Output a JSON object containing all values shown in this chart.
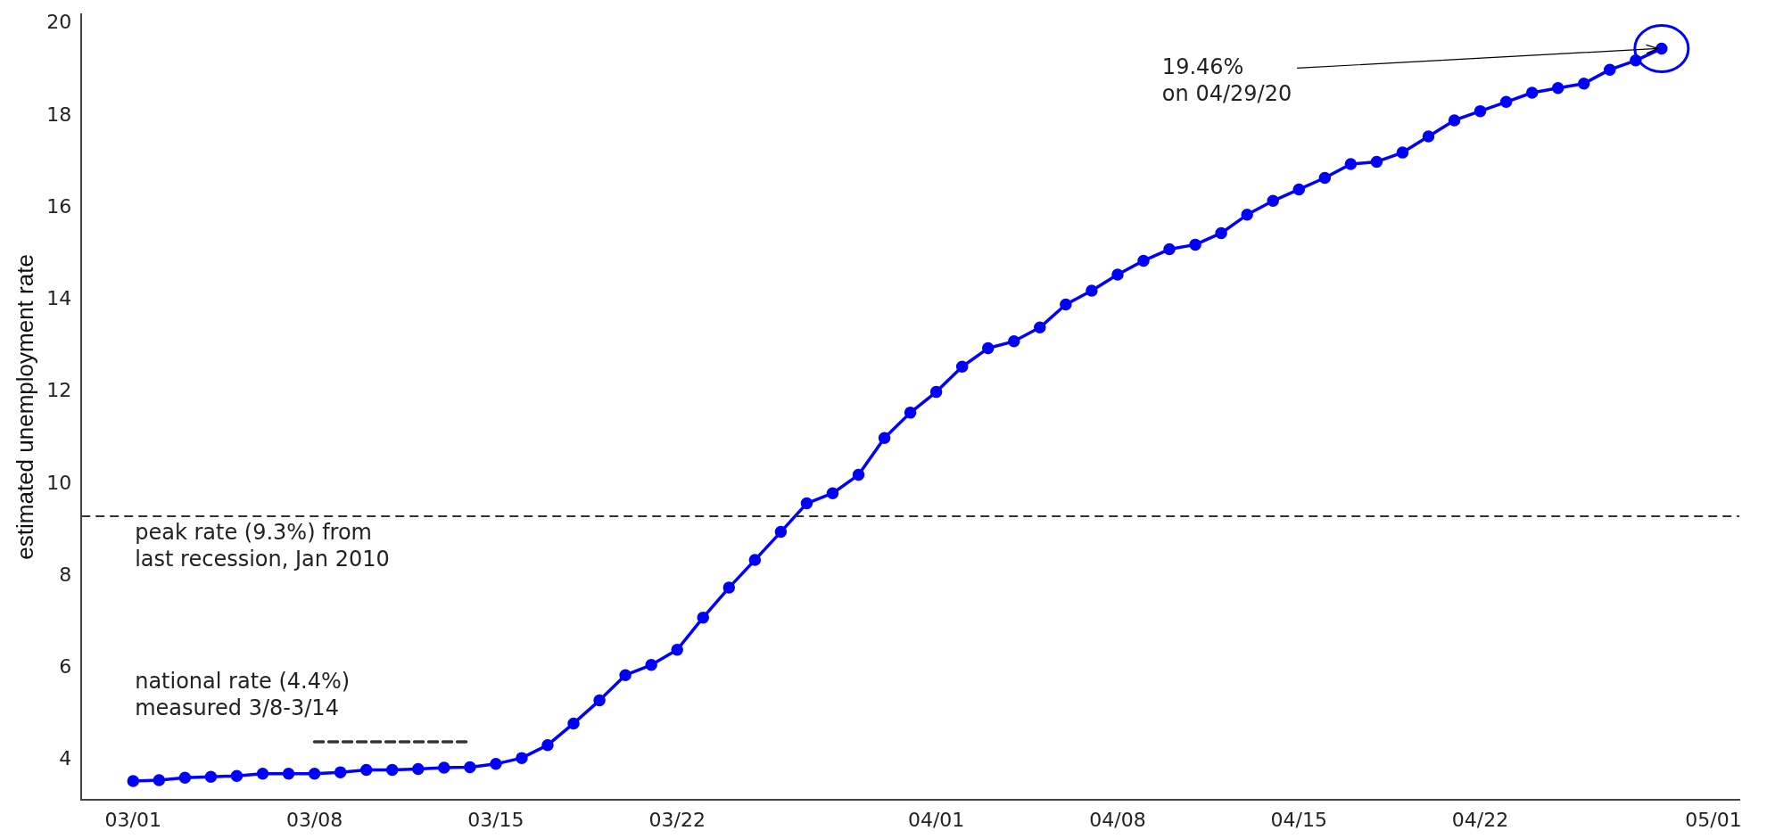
{
  "chart_data": {
    "type": "line",
    "ylabel": "estimated unemployment rate",
    "x": [
      "--03-01",
      "--03-02",
      "--03-03",
      "--03-04",
      "--03-05",
      "--03-06",
      "--03-07",
      "--03-08",
      "--03-09",
      "--03-10",
      "--03-11",
      "--03-12",
      "--03-13",
      "--03-14",
      "--03-15",
      "--03-16",
      "--03-17",
      "--03-18",
      "--03-19",
      "--03-20",
      "--03-21",
      "--03-22",
      "--03-23",
      "--03-24",
      "--03-25",
      "--03-26",
      "--03-27",
      "--03-28",
      "--03-29",
      "--03-30",
      "--03-31",
      "--04-01",
      "--04-02",
      "--04-03",
      "--04-04",
      "--04-05",
      "--04-06",
      "--04-07",
      "--04-08",
      "--04-09",
      "--04-10",
      "--04-11",
      "--04-12",
      "--04-13",
      "--04-14",
      "--04-15",
      "--04-16",
      "--04-17",
      "--04-18",
      "--04-19",
      "--04-20",
      "--04-21",
      "--04-22",
      "--04-23",
      "--04-24",
      "--04-25",
      "--04-26",
      "--04-27",
      "--04-28",
      "--04-29"
    ],
    "series": [
      {
        "color": "#0000ff",
        "marker": "circle",
        "line_style": "solid",
        "values": [
          3.55,
          3.57,
          3.62,
          3.64,
          3.66,
          3.71,
          3.71,
          3.71,
          3.74,
          3.79,
          3.79,
          3.81,
          3.84,
          3.85,
          3.92,
          4.05,
          4.33,
          4.8,
          5.3,
          5.85,
          6.07,
          6.4,
          7.1,
          7.75,
          8.35,
          8.96,
          9.58,
          9.8,
          10.2,
          11.0,
          11.55,
          12.0,
          12.55,
          12.95,
          13.1,
          13.4,
          13.9,
          14.2,
          14.55,
          14.85,
          15.1,
          15.2,
          15.45,
          15.85,
          16.15,
          16.4,
          16.65,
          16.95,
          17.0,
          17.2,
          17.55,
          17.9,
          18.1,
          18.3,
          18.5,
          18.6,
          18.7,
          19.0,
          19.2,
          19.46
        ]
      },
      {
        "color": "#333333",
        "marker": "none",
        "line_style": "dashed",
        "x": [
          "--03-08",
          "--03-14"
        ],
        "values": [
          4.4,
          4.4
        ]
      }
    ],
    "ref_lines": [
      {
        "axis": "y",
        "value": 9.3,
        "label": "peak rate (9.3%) from\nlast recession, Jan 2010",
        "color": "#333333",
        "line_style": "dashed"
      }
    ],
    "annotations": [
      {
        "text": "national rate (4.4%)\nmeasured 3/8-3/14",
        "x": "--03-08",
        "y": 4.4
      },
      {
        "text": "19.46%\non 04/29/20",
        "x": "--04-29",
        "y": 19.46
      }
    ],
    "xlim": [
      "--02-27",
      "--05-02"
    ],
    "xticks": [
      {
        "value": "--03-01",
        "label": "03/01"
      },
      {
        "value": "--03-08",
        "label": "03/08"
      },
      {
        "value": "--03-15",
        "label": "03/15"
      },
      {
        "value": "--03-22",
        "label": "03/22"
      },
      {
        "value": "--04-01",
        "label": "04/01"
      },
      {
        "value": "--04-08",
        "label": "04/08"
      },
      {
        "value": "--04-15",
        "label": "04/15"
      },
      {
        "value": "--04-22",
        "label": "04/22"
      },
      {
        "value": "--05-01",
        "label": "05/01"
      }
    ],
    "ylim": [
      3.15,
      20.2
    ],
    "yticks": [
      4,
      6,
      8,
      10,
      12,
      14,
      16,
      18,
      20
    ],
    "grid": false,
    "legend": false
  }
}
